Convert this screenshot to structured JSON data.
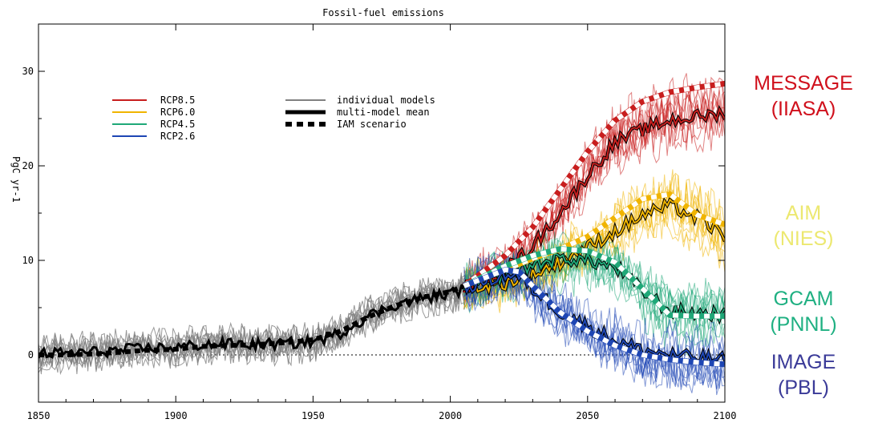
{
  "chart_data": {
    "type": "line",
    "title": "Fossil-fuel emissions",
    "ylabel": "PgC yr-1",
    "xlabel": "",
    "xlim": [
      1850,
      2100
    ],
    "ylim": [
      -5,
      35
    ],
    "x_ticks": [
      1850,
      1900,
      1950,
      2000,
      2050,
      2100
    ],
    "y_ticks": [
      0,
      10,
      20,
      30
    ],
    "grid": false,
    "zero_line": "dotted",
    "legend_position": "top-left",
    "legend_scenarios": [
      {
        "name": "RCP8.5",
        "color": "#c81e1e"
      },
      {
        "name": "RCP6.0",
        "color": "#f0b400"
      },
      {
        "name": "RCP4.5",
        "color": "#1fa878"
      },
      {
        "name": "RCP2.6",
        "color": "#1e46b4"
      }
    ],
    "legend_styles": [
      {
        "name": "individual models",
        "style": "thin"
      },
      {
        "name": "multi-model mean",
        "style": "thick"
      },
      {
        "name": "IAM scenario",
        "style": "dashed"
      }
    ],
    "historical": {
      "color": "#808080",
      "x": [
        1850,
        1860,
        1870,
        1880,
        1890,
        1900,
        1910,
        1920,
        1930,
        1940,
        1950,
        1960,
        1970,
        1980,
        1990,
        2000,
        2005
      ],
      "iam": [
        0,
        0,
        0.1,
        0.3,
        0.5,
        0.6,
        0.9,
        1.0,
        1.1,
        1.3,
        1.6,
        2.5,
        4.0,
        5.2,
        6.1,
        6.7,
        7.3
      ],
      "mean": [
        0.1,
        0.2,
        0.3,
        0.5,
        0.7,
        0.8,
        1.1,
        1.2,
        1.1,
        1.2,
        1.4,
        2.3,
        4.1,
        5.3,
        6.0,
        6.5,
        7.0
      ]
    },
    "series": [
      {
        "name": "RCP8.5",
        "color": "#c81e1e",
        "x": [
          2005,
          2020,
          2030,
          2040,
          2050,
          2060,
          2070,
          2080,
          2090,
          2100
        ],
        "iam": [
          7.3,
          10.5,
          13.5,
          17.5,
          21.5,
          24.8,
          26.8,
          27.8,
          28.3,
          28.7
        ],
        "mean": [
          7.2,
          9.0,
          11.5,
          15.0,
          19.0,
          22.5,
          23.8,
          24.8,
          25.2,
          25.6
        ]
      },
      {
        "name": "RCP6.0",
        "color": "#f0b400",
        "x": [
          2005,
          2020,
          2030,
          2040,
          2050,
          2060,
          2070,
          2080,
          2090,
          2100
        ],
        "iam": [
          7.3,
          9.0,
          10.2,
          11.2,
          12.5,
          14.5,
          16.5,
          17.0,
          14.8,
          13.8
        ],
        "mean": [
          7.0,
          7.6,
          8.5,
          9.8,
          11.4,
          13.0,
          14.8,
          15.8,
          14.5,
          12.6
        ]
      },
      {
        "name": "RCP4.5",
        "color": "#1fa878",
        "x": [
          2005,
          2020,
          2030,
          2040,
          2050,
          2060,
          2070,
          2080,
          2090,
          2100
        ],
        "iam": [
          7.3,
          9.4,
          10.5,
          11.2,
          11.0,
          9.8,
          7.0,
          4.2,
          4.1,
          4.1
        ],
        "mean": [
          7.0,
          8.5,
          9.5,
          10.2,
          10.0,
          9.3,
          6.8,
          4.6,
          4.4,
          4.3
        ]
      },
      {
        "name": "RCP2.6",
        "color": "#1e46b4",
        "x": [
          2005,
          2020,
          2025,
          2030,
          2040,
          2050,
          2060,
          2070,
          2080,
          2090,
          2100
        ],
        "iam": [
          7.3,
          9.0,
          8.8,
          7.3,
          4.5,
          2.5,
          1.0,
          0.0,
          -0.5,
          -0.8,
          -1.0
        ],
        "mean": [
          7.0,
          8.5,
          8.3,
          7.0,
          4.6,
          3.0,
          1.5,
          0.5,
          0.0,
          -0.3,
          -0.5
        ]
      }
    ]
  },
  "side_labels": [
    {
      "line1": "MESSAGE",
      "line2": "(IIASA)",
      "color": "#d0101c"
    },
    {
      "line1": "AIM",
      "line2": "(NIES)",
      "color": "#ece870"
    },
    {
      "line1": "GCAM",
      "line2": "(PNNL)",
      "color": "#1fb082"
    },
    {
      "line1": "IMAGE",
      "line2": "(PBL)",
      "color": "#3a3a98"
    }
  ]
}
